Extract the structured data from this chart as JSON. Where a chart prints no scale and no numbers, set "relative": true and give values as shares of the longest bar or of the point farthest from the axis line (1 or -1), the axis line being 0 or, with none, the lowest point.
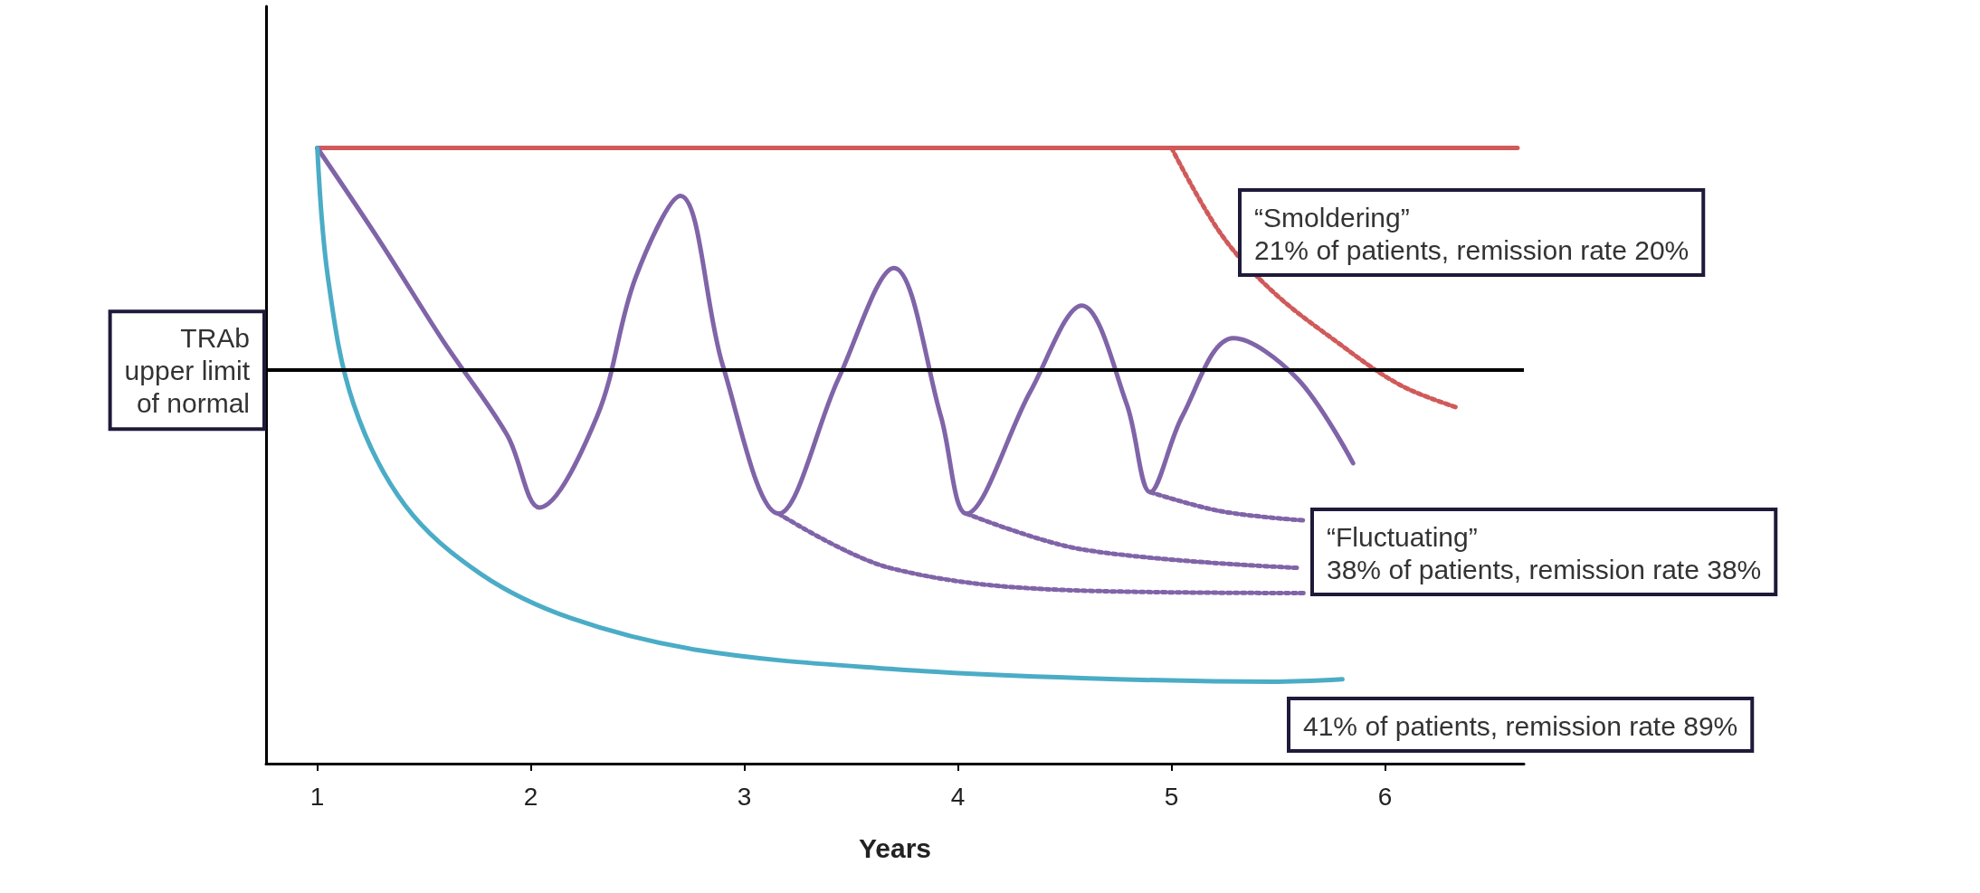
{
  "chart_data": {
    "type": "line",
    "relative": true,
    "xlabel": "Years",
    "xlim": [
      0.76,
      6.65
    ],
    "xticks": [
      1,
      2,
      3,
      4,
      5,
      6
    ],
    "grid": false,
    "marker": "none",
    "line_style": "solid",
    "series": [
      {
        "color": "#d05a5a",
        "x": [
          1,
          6.62
        ],
        "values": [
          1,
          1
        ]
      },
      {
        "color": "#d05a5a",
        "line_style": "dotted",
        "x": [
          5.0,
          5.23,
          5.47,
          5.77,
          6.07,
          6.34
        ],
        "values": [
          1,
          0.861,
          0.768,
          0.686,
          0.615,
          0.578
        ]
      },
      {
        "color": "#8064a8",
        "x": [
          1,
          1.29,
          1.59,
          1.89,
          2.04,
          2.31,
          2.49,
          2.7,
          2.9,
          3.16,
          3.44,
          3.7,
          3.92,
          4.04,
          4.34,
          4.58,
          4.79,
          4.9,
          5.05,
          5.29,
          5.59,
          5.85
        ],
        "values": [
          1,
          0.85,
          0.686,
          0.533,
          0.416,
          0.564,
          0.789,
          0.922,
          0.645,
          0.406,
          0.625,
          0.805,
          0.564,
          0.406,
          0.605,
          0.744,
          0.584,
          0.441,
          0.564,
          0.691,
          0.625,
          0.488
        ]
      },
      {
        "color": "#8064a8",
        "line_style": "dotted",
        "x": [
          3.16,
          3.68,
          4.58,
          5.62
        ],
        "values": [
          0.406,
          0.318,
          0.281,
          0.277
        ]
      },
      {
        "color": "#8064a8",
        "line_style": "dotted",
        "x": [
          4.04,
          4.58,
          5.59
        ],
        "values": [
          0.406,
          0.348,
          0.318
        ]
      },
      {
        "color": "#8064a8",
        "line_style": "dotted",
        "x": [
          4.9,
          5.23,
          5.62
        ],
        "values": [
          0.441,
          0.41,
          0.395
        ]
      },
      {
        "color": "#4bacc6",
        "x": [
          1,
          1.05,
          1.17,
          1.41,
          1.77,
          2.19,
          2.79,
          3.68,
          4.58,
          5.47,
          5.8
        ],
        "values": [
          1,
          0.789,
          0.584,
          0.42,
          0.307,
          0.236,
          0.184,
          0.154,
          0.139,
          0.133,
          0.137
        ]
      }
    ],
    "ref_lines": [
      {
        "axis": "y",
        "value": 0.639,
        "label": "TRAb\nupper limit\nof normal",
        "color": "#000000"
      }
    ],
    "annotations": [
      "“Smoldering”\n21% of patients, remission rate 20%",
      "“Fluctuating”\n38% of patients, remission rate 38%",
      "41% of patients, remission rate 89%"
    ]
  }
}
